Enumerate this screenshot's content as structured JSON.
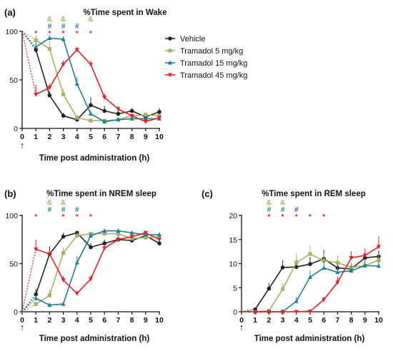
{
  "figure": {
    "series_styles": [
      {
        "name": "Vehicle",
        "color": "#222222",
        "marker": "circle"
      },
      {
        "name": "Tramadol 5 mg/kg",
        "color": "#a9b065",
        "marker": "square"
      },
      {
        "name": "Tramadol 15 mg/kg",
        "color": "#1a7f9c",
        "marker": "triangle"
      },
      {
        "name": "Tramadol 45 mg/kg",
        "color": "#ee1c25",
        "marker": "triangle-down"
      }
    ],
    "symbol_colors": {
      "&": "#a9b065",
      "#": "#1a7f9c",
      "*": "#ee1c25",
      "#45": "#3b4aa0"
    }
  },
  "chart_data": [
    {
      "panel": "(a)",
      "type": "line",
      "title": "%Time spent in Wake",
      "xlabel": "Time post administration (h)",
      "ylabel": "",
      "x": [
        0,
        1,
        2,
        3,
        4,
        5,
        6,
        7,
        8,
        9,
        10
      ],
      "xlim": [
        0,
        10
      ],
      "ylim": [
        0,
        100
      ],
      "yticks": [
        0,
        50,
        100
      ],
      "legend": {
        "position": "top-right",
        "entries": [
          "Vehicle",
          "Tramadol 5 mg/kg",
          "Tramadol 15 mg/kg",
          "Tramadol 45 mg/kg"
        ]
      },
      "start_marker": "↑",
      "series": [
        {
          "name": "Vehicle",
          "values": [
            100,
            81,
            34,
            13,
            9,
            24,
            18,
            15,
            18,
            12,
            17
          ],
          "err": [
            0,
            5,
            4,
            3,
            3,
            8,
            5,
            4,
            3,
            3,
            4
          ]
        },
        {
          "name": "Tramadol 5 mg/kg",
          "values": [
            100,
            91,
            82,
            35,
            11,
            8,
            8,
            9,
            13,
            14,
            13
          ],
          "err": [
            0,
            5,
            8,
            6,
            3,
            2,
            2,
            2,
            2,
            3,
            2
          ]
        },
        {
          "name": "Tramadol 15 mg/kg",
          "values": [
            100,
            84,
            93,
            92,
            46,
            15,
            7,
            9,
            10,
            10,
            10
          ],
          "err": [
            0,
            5,
            3,
            3,
            7,
            4,
            2,
            2,
            2,
            2,
            2
          ]
        },
        {
          "name": "Tramadol 45 mg/kg",
          "values": [
            100,
            35,
            42,
            66,
            81,
            66,
            32,
            20,
            13,
            7,
            11
          ],
          "err": [
            0,
            10,
            4,
            4,
            3,
            4,
            4,
            3,
            2,
            2,
            2
          ]
        }
      ],
      "significance": [
        {
          "symbol": "&",
          "x": [
            2,
            3,
            5
          ]
        },
        {
          "symbol": "#",
          "x": [
            2,
            3,
            4
          ]
        },
        {
          "symbol": "*",
          "x": [
            1,
            2,
            3,
            4,
            5
          ]
        }
      ]
    },
    {
      "panel": "(b)",
      "type": "line",
      "title": "%Time spent in NREM sleep",
      "xlabel": "Time post administration (h)",
      "ylabel": "",
      "x": [
        0,
        1,
        2,
        3,
        4,
        5,
        6,
        7,
        8,
        9,
        10
      ],
      "xlim": [
        0,
        10
      ],
      "ylim": [
        0,
        100
      ],
      "yticks": [
        0,
        50,
        100
      ],
      "start_marker": "↑",
      "series": [
        {
          "name": "Vehicle",
          "values": [
            0,
            18,
            60,
            78,
            82,
            67,
            71,
            75,
            74,
            79,
            71
          ],
          "err": [
            0,
            6,
            8,
            4,
            2,
            4,
            4,
            4,
            3,
            3,
            3
          ]
        },
        {
          "name": "Tramadol 5 mg/kg",
          "values": [
            0,
            8,
            17,
            61,
            79,
            81,
            81,
            81,
            76,
            77,
            78
          ],
          "err": [
            0,
            3,
            6,
            6,
            3,
            2,
            2,
            2,
            2,
            3,
            2
          ]
        },
        {
          "name": "Tramadol 15 mg/kg",
          "values": [
            0,
            14,
            7,
            8,
            51,
            79,
            84,
            84,
            82,
            80,
            80
          ],
          "err": [
            0,
            4,
            2,
            2,
            7,
            3,
            2,
            2,
            2,
            2,
            2
          ]
        },
        {
          "name": "Tramadol 45 mg/kg",
          "values": [
            0,
            65,
            60,
            33,
            19,
            34,
            66,
            75,
            78,
            82,
            75
          ],
          "err": [
            0,
            10,
            4,
            4,
            3,
            4,
            4,
            3,
            2,
            2,
            2
          ]
        }
      ],
      "significance": [
        {
          "symbol": "&",
          "x": [
            2,
            3
          ]
        },
        {
          "symbol": "#",
          "x": [
            2,
            3,
            4
          ]
        },
        {
          "symbol": "*",
          "x": [
            1,
            3,
            4,
            5
          ]
        }
      ]
    },
    {
      "panel": "(c)",
      "type": "line",
      "title": "%Time spent in REM sleep",
      "xlabel": "Time post administration (h)",
      "ylabel": "",
      "x": [
        0,
        1,
        2,
        3,
        4,
        5,
        6,
        7,
        8,
        9,
        10
      ],
      "xlim": [
        0,
        10
      ],
      "ylim": [
        0,
        20
      ],
      "yticks": [
        0,
        5,
        10,
        15,
        20
      ],
      "start_marker": "↑",
      "series": [
        {
          "name": "Vehicle",
          "values": [
            0,
            0.5,
            4.8,
            9.2,
            9.3,
            9.9,
            11,
            9.1,
            8.9,
            11.2,
            11.5
          ],
          "err": [
            0,
            0.3,
            1.2,
            1.5,
            1.6,
            1.5,
            1.8,
            1.2,
            1.2,
            1.2,
            1.2
          ]
        },
        {
          "name": "Tramadol 5 mg/kg",
          "values": [
            0,
            0,
            0.2,
            4.7,
            10.2,
            12,
            10.6,
            10.2,
            9.2,
            9.6,
            10.7
          ],
          "err": [
            0,
            0,
            0.2,
            1.2,
            1.9,
            1.7,
            1.5,
            1.5,
            1.2,
            1.3,
            1.3
          ]
        },
        {
          "name": "Tramadol 15 mg/kg",
          "values": [
            0,
            0,
            0,
            0,
            2.2,
            7.2,
            9.1,
            8.2,
            8.5,
            9.6,
            9.5
          ],
          "err": [
            0,
            0,
            0,
            0,
            0.8,
            1.4,
            1.5,
            1.2,
            1.2,
            1.2,
            1.2
          ]
        },
        {
          "name": "Tramadol 45 mg/kg",
          "values": [
            0,
            0,
            0,
            0,
            0,
            0.1,
            2.5,
            6.1,
            11.2,
            11.7,
            13.5
          ],
          "err": [
            0,
            0,
            0,
            0,
            0,
            0.1,
            0.6,
            1.2,
            1.4,
            1.5,
            2.2
          ]
        }
      ],
      "significance": [
        {
          "symbol": "&",
          "x": [
            2,
            3
          ]
        },
        {
          "symbol": "#",
          "x": [
            2,
            3
          ]
        },
        {
          "symbol": "#45",
          "x": [
            4
          ]
        },
        {
          "symbol": "*",
          "x": [
            2,
            3,
            4,
            5,
            6
          ]
        }
      ]
    }
  ]
}
